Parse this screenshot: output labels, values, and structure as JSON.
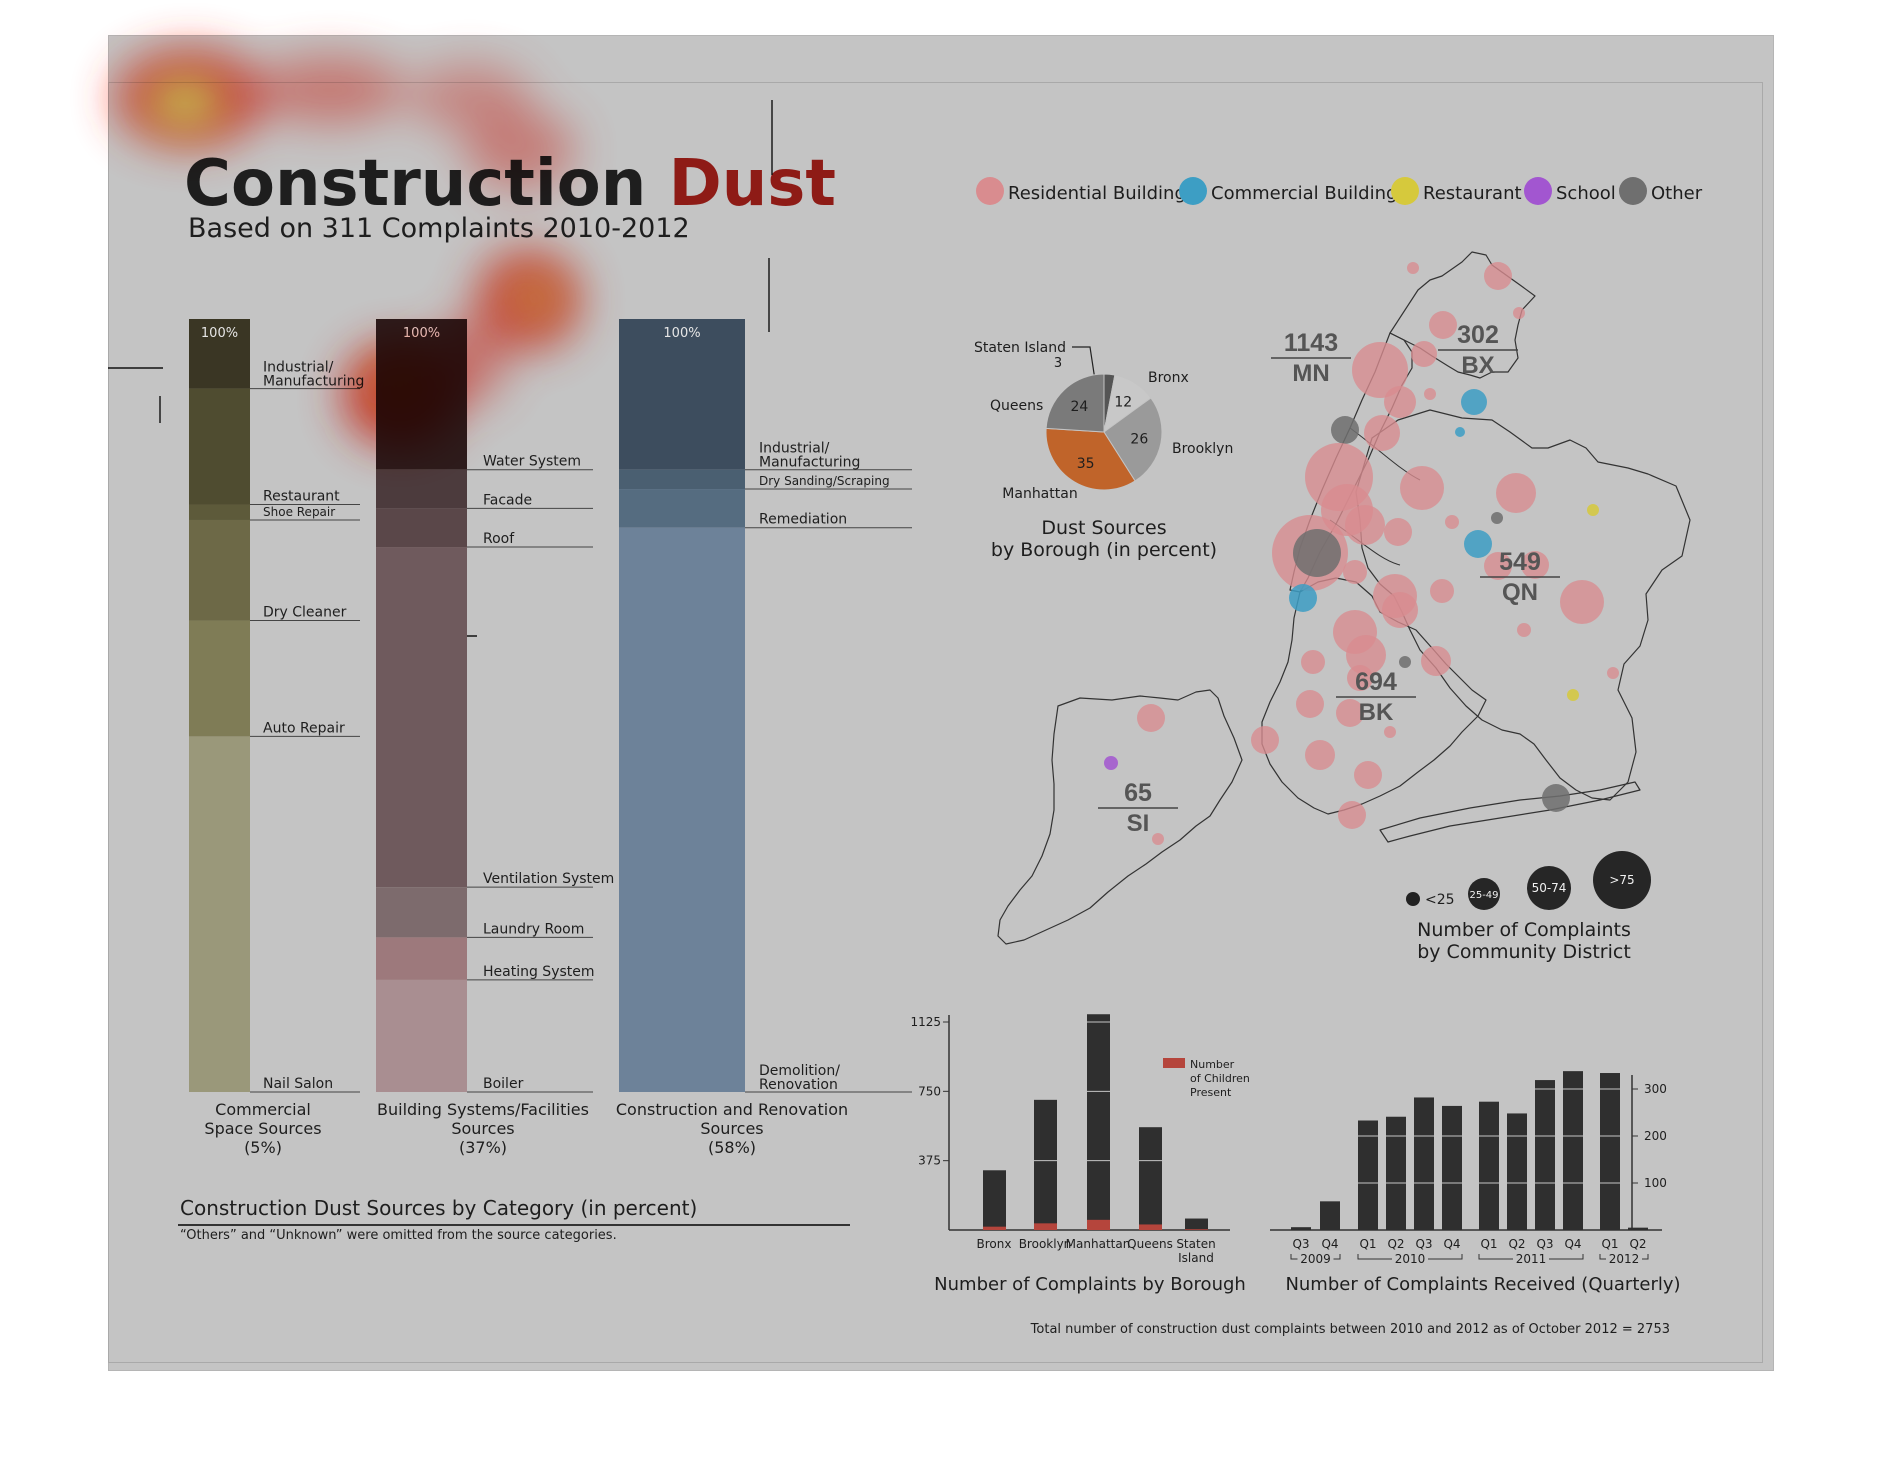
{
  "header": {
    "title_part1": "Construction ",
    "title_part2": "Dust",
    "subtitle": "Based on 311 Complaints 2010-2012"
  },
  "colors": {
    "background": "#c4c4c4",
    "residential": "#d98c8f",
    "commercial": "#3d9ec4",
    "restaurant": "#d6c93c",
    "school": "#a256d0",
    "other": "#6f6f6f",
    "manhattan": "#c0642a",
    "children": "#b5453c",
    "bar_dark": "#2f2f2f"
  },
  "chart_data": [
    {
      "id": "category",
      "type": "bar",
      "title": "Construction Dust Sources by Category (in percent)",
      "note": "“Others” and “Unknown” were omitted from the source categories.",
      "ylim": [
        0,
        100
      ],
      "columns": [
        {
          "top_label": "100%",
          "caption": [
            "Commercial",
            "Space Sources",
            "(5%)"
          ],
          "segments": [
            {
              "label": "Industrial/ Manufacturing",
              "percent": 9,
              "color": "#3a3624"
            },
            {
              "label": "Restaurant",
              "percent": 15,
              "color": "#4f4c30"
            },
            {
              "label": "Shoe Repair",
              "percent": 2,
              "color": "#5d5a3a"
            },
            {
              "label": "Dry Cleaner",
              "percent": 13,
              "color": "#6d6947"
            },
            {
              "label": "Auto Repair",
              "percent": 15,
              "color": "#7f7c56"
            },
            {
              "label": "Nail Salon",
              "percent": 46,
              "color": "#9a987a"
            }
          ]
        },
        {
          "top_label": "100%",
          "caption": [
            "Building Systems/Facilities",
            "Sources",
            "(37%)"
          ],
          "segments": [
            {
              "label": "Water System",
              "percent": 19.5,
              "color": "#2d1b1b"
            },
            {
              "label": "Facade",
              "percent": 5,
              "color": "#4c3b3d"
            },
            {
              "label": "Roof",
              "percent": 5,
              "color": "#5a4749"
            },
            {
              "label": "Ventilation System",
              "percent": 44,
              "color": "#6f5a5d"
            },
            {
              "label": "Laundry Room",
              "percent": 6.5,
              "color": "#7d6b6d"
            },
            {
              "label": "Heating System",
              "percent": 5.5,
              "color": "#9d797c"
            },
            {
              "label": "Boiler",
              "percent": 14.5,
              "color": "#a98e91"
            }
          ]
        },
        {
          "top_label": "100%",
          "caption": [
            "Construction and Renovation",
            "Sources",
            "(58%)"
          ],
          "segments": [
            {
              "label": "Industrial/ Manufacturing",
              "percent": 19.5,
              "color": "#3d4d5e"
            },
            {
              "label": "Dry Sanding/Scraping",
              "percent": 2.5,
              "color": "#4a5f71"
            },
            {
              "label": "Remediation",
              "percent": 5,
              "color": "#556c80"
            },
            {
              "label": "Demolition/ Renovation",
              "percent": 73,
              "color": "#6d8299"
            }
          ]
        }
      ]
    },
    {
      "id": "borough-pie",
      "type": "pie",
      "title": [
        "Dust Sources",
        "by Borough (in percent)"
      ],
      "slices": [
        {
          "label": "Staten Island",
          "value": 3,
          "color": "#555555"
        },
        {
          "label": "Bronx",
          "value": 12,
          "color": "#c8c8c8"
        },
        {
          "label": "Brooklyn",
          "value": 26,
          "color": "#9a9a9a"
        },
        {
          "label": "Manhattan",
          "value": 35,
          "color": "#c0642a"
        },
        {
          "label": "Queens",
          "value": 24,
          "color": "#7a7a7a"
        }
      ]
    },
    {
      "id": "borough-bar",
      "type": "bar",
      "title": "Number of Complaints by Borough",
      "legend": [
        "Number",
        "of Children",
        "Present"
      ],
      "yticks": [
        375,
        750,
        1125
      ],
      "ylim": [
        0,
        1200
      ],
      "categories": [
        [
          "Bronx"
        ],
        [
          "Brooklyn"
        ],
        [
          "Manhattan"
        ],
        [
          "Queens"
        ],
        [
          "Staten",
          "Island"
        ]
      ],
      "series": [
        {
          "name": "Complaints",
          "values": [
            323,
            704,
            1167,
            556,
            62
          ]
        },
        {
          "name": "Number of Children Present",
          "values": [
            18,
            36,
            55,
            30,
            4
          ]
        }
      ]
    },
    {
      "id": "quarterly-bar",
      "type": "bar",
      "title": "Number of Complaints Received (Quarterly)",
      "yticks": [
        100,
        200,
        300
      ],
      "ylim": [
        0,
        350
      ],
      "categories": [
        "Q3",
        "Q4",
        "Q1",
        "Q2",
        "Q3",
        "Q4",
        "Q1",
        "Q2",
        "Q3",
        "Q4",
        "Q1",
        "Q2"
      ],
      "years": [
        "2009",
        "2010",
        "2011",
        "2012"
      ],
      "values": [
        6,
        61,
        233,
        241,
        282,
        264,
        273,
        248,
        319,
        338,
        334,
        5
      ]
    },
    {
      "id": "district-map",
      "type": "scatter",
      "title": [
        "Number of Complaints",
        "by Community District"
      ],
      "legend": [
        {
          "label": "Residential Building",
          "color": "#d98c8f"
        },
        {
          "label": "Commercial Building",
          "color": "#3d9ec4"
        },
        {
          "label": "Restaurant",
          "color": "#d6c93c"
        },
        {
          "label": "School",
          "color": "#a256d0"
        },
        {
          "label": "Other",
          "color": "#6f6f6f"
        }
      ],
      "size_legend": [
        "<25",
        "25-49",
        "50-74",
        ">75"
      ],
      "borough_totals": [
        {
          "value": "1143",
          "abbr": "MN"
        },
        {
          "value": "302",
          "abbr": "BX"
        },
        {
          "value": "549",
          "abbr": "QN"
        },
        {
          "value": "694",
          "abbr": "BK"
        },
        {
          "value": "65",
          "abbr": "SI"
        }
      ],
      "points": [
        {
          "x": 1413,
          "y": 268,
          "r": 6,
          "type": "residential"
        },
        {
          "x": 1498,
          "y": 276,
          "r": 14,
          "type": "residential"
        },
        {
          "x": 1519,
          "y": 313,
          "r": 6,
          "type": "residential"
        },
        {
          "x": 1443,
          "y": 325,
          "r": 14,
          "type": "residential"
        },
        {
          "x": 1380,
          "y": 370,
          "r": 28,
          "type": "residential"
        },
        {
          "x": 1424,
          "y": 354,
          "r": 13,
          "type": "residential"
        },
        {
          "x": 1400,
          "y": 402,
          "r": 16,
          "type": "residential"
        },
        {
          "x": 1430,
          "y": 394,
          "r": 6,
          "type": "residential"
        },
        {
          "x": 1474,
          "y": 402,
          "r": 13,
          "type": "commercial"
        },
        {
          "x": 1460,
          "y": 432,
          "r": 5,
          "type": "commercial"
        },
        {
          "x": 1345,
          "y": 430,
          "r": 14,
          "type": "other"
        },
        {
          "x": 1382,
          "y": 433,
          "r": 18,
          "type": "residential"
        },
        {
          "x": 1339,
          "y": 477,
          "r": 34,
          "type": "residential"
        },
        {
          "x": 1422,
          "y": 488,
          "r": 22,
          "type": "residential"
        },
        {
          "x": 1516,
          "y": 493,
          "r": 20,
          "type": "residential"
        },
        {
          "x": 1347,
          "y": 510,
          "r": 26,
          "type": "residential"
        },
        {
          "x": 1365,
          "y": 525,
          "r": 20,
          "type": "residential"
        },
        {
          "x": 1398,
          "y": 532,
          "r": 14,
          "type": "residential"
        },
        {
          "x": 1452,
          "y": 522,
          "r": 7,
          "type": "residential"
        },
        {
          "x": 1497,
          "y": 518,
          "r": 6,
          "type": "other"
        },
        {
          "x": 1478,
          "y": 544,
          "r": 14,
          "type": "commercial"
        },
        {
          "x": 1593,
          "y": 510,
          "r": 6,
          "type": "restaurant"
        },
        {
          "x": 1310,
          "y": 553,
          "r": 38,
          "type": "residential"
        },
        {
          "x": 1317,
          "y": 553,
          "r": 24,
          "type": "other"
        },
        {
          "x": 1303,
          "y": 598,
          "r": 14,
          "type": "commercial"
        },
        {
          "x": 1355,
          "y": 572,
          "r": 12,
          "type": "residential"
        },
        {
          "x": 1395,
          "y": 596,
          "r": 22,
          "type": "residential"
        },
        {
          "x": 1442,
          "y": 591,
          "r": 12,
          "type": "residential"
        },
        {
          "x": 1498,
          "y": 566,
          "r": 14,
          "type": "residential"
        },
        {
          "x": 1535,
          "y": 565,
          "r": 14,
          "type": "residential"
        },
        {
          "x": 1582,
          "y": 602,
          "r": 22,
          "type": "residential"
        },
        {
          "x": 1355,
          "y": 632,
          "r": 22,
          "type": "residential"
        },
        {
          "x": 1400,
          "y": 610,
          "r": 18,
          "type": "residential"
        },
        {
          "x": 1366,
          "y": 655,
          "r": 20,
          "type": "residential"
        },
        {
          "x": 1360,
          "y": 678,
          "r": 13,
          "type": "residential"
        },
        {
          "x": 1405,
          "y": 662,
          "r": 6,
          "type": "other"
        },
        {
          "x": 1436,
          "y": 661,
          "r": 15,
          "type": "residential"
        },
        {
          "x": 1524,
          "y": 630,
          "r": 7,
          "type": "residential"
        },
        {
          "x": 1313,
          "y": 662,
          "r": 12,
          "type": "residential"
        },
        {
          "x": 1310,
          "y": 704,
          "r": 14,
          "type": "residential"
        },
        {
          "x": 1350,
          "y": 713,
          "r": 14,
          "type": "residential"
        },
        {
          "x": 1265,
          "y": 740,
          "r": 14,
          "type": "residential"
        },
        {
          "x": 1320,
          "y": 755,
          "r": 15,
          "type": "residential"
        },
        {
          "x": 1390,
          "y": 732,
          "r": 6,
          "type": "residential"
        },
        {
          "x": 1368,
          "y": 775,
          "r": 14,
          "type": "residential"
        },
        {
          "x": 1352,
          "y": 815,
          "r": 14,
          "type": "residential"
        },
        {
          "x": 1613,
          "y": 673,
          "r": 6,
          "type": "residential"
        },
        {
          "x": 1573,
          "y": 695,
          "r": 6,
          "type": "restaurant"
        },
        {
          "x": 1556,
          "y": 798,
          "r": 14,
          "type": "other"
        },
        {
          "x": 1151,
          "y": 718,
          "r": 14,
          "type": "residential"
        },
        {
          "x": 1111,
          "y": 763,
          "r": 7,
          "type": "school"
        },
        {
          "x": 1158,
          "y": 839,
          "r": 6,
          "type": "residential"
        }
      ]
    }
  ],
  "footer": "Total number of construction dust complaints between 2010 and 2012 as of October 2012 = 2753"
}
